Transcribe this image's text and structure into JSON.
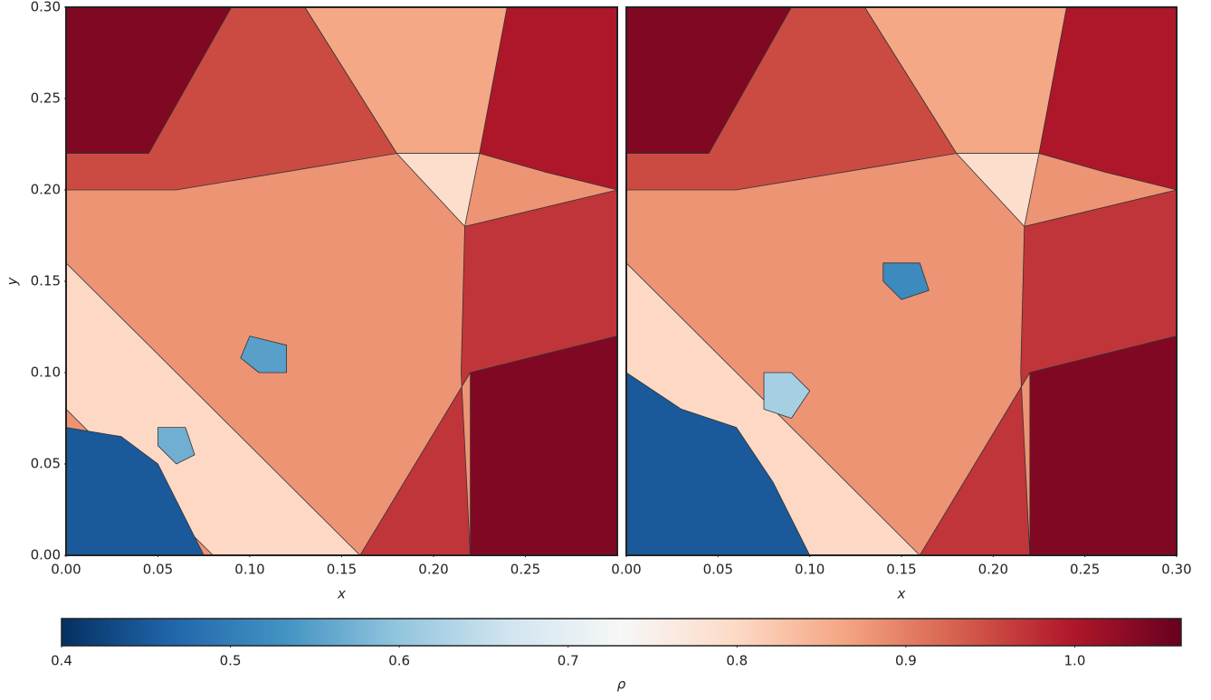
{
  "chart_data": [
    {
      "type": "contour",
      "xlabel": "x",
      "ylabel": "y",
      "xlim": [
        0,
        0.3
      ],
      "ylim": [
        0,
        0.3
      ],
      "xticks": [
        {
          "value": 0,
          "label": "0.00"
        },
        {
          "value": 0.05,
          "label": "0.05"
        },
        {
          "value": 0.1,
          "label": "0.10"
        },
        {
          "value": 0.15,
          "label": "0.15"
        },
        {
          "value": 0.2,
          "label": "0.20"
        },
        {
          "value": 0.25,
          "label": "0.25"
        }
      ],
      "yticks": [
        {
          "value": 0,
          "label": "0.00"
        },
        {
          "value": 0.05,
          "label": "0.05"
        },
        {
          "value": 0.1,
          "label": "0.10"
        },
        {
          "value": 0.15,
          "label": "0.15"
        },
        {
          "value": 0.2,
          "label": "0.20"
        },
        {
          "value": 0.25,
          "label": "0.25"
        },
        {
          "value": 0.3,
          "label": "0.30"
        }
      ],
      "values": [
        0.88,
        1.04,
        0.95,
        0.86,
        1.0,
        0.79,
        0.97,
        1.04,
        0.8,
        0.45,
        0.55,
        0.57
      ]
    },
    {
      "type": "contour",
      "xlabel": "x",
      "xlim": [
        0,
        0.3
      ],
      "ylim": [
        0,
        0.3
      ],
      "xticks": [
        {
          "value": 0,
          "label": "0.00"
        },
        {
          "value": 0.05,
          "label": "0.05"
        },
        {
          "value": 0.1,
          "label": "0.10"
        },
        {
          "value": 0.15,
          "label": "0.15"
        },
        {
          "value": 0.2,
          "label": "0.20"
        },
        {
          "value": 0.25,
          "label": "0.25"
        },
        {
          "value": 0.3,
          "label": "0.30"
        }
      ],
      "values": [
        0.88,
        1.04,
        0.95,
        0.86,
        1.0,
        0.79,
        0.97,
        1.04,
        0.8,
        0.45,
        0.52,
        0.62
      ]
    }
  ],
  "colorbar": {
    "label": "ρ",
    "clim": [
      0.4,
      1.063
    ],
    "ticks": [
      0.4,
      0.5,
      0.6,
      0.7,
      0.8,
      0.9,
      {
        "value": 1,
        "label": "1.0"
      }
    ]
  }
}
